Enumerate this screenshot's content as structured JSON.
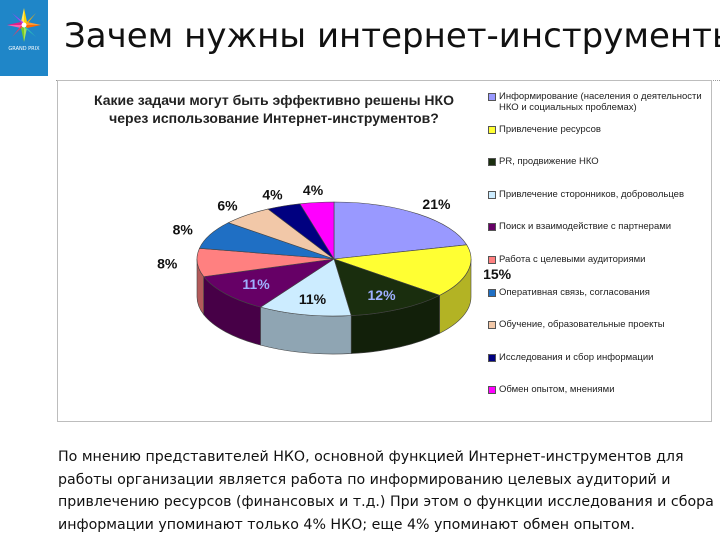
{
  "logo": {
    "text": "GRAND PRIX"
  },
  "slide": {
    "title": "Зачем нужны интернет-инструменты",
    "caption": "По мнению представителей НКО, основной функцией Интернет-инструментов для работы организации является работа по информированию целевых аудиторий и привлечению ресурсов (финансовых и т.д.) При этом о функции исследования и сбора информации упоминают только 4% НКО; еще 4% упоминают обмен опытом."
  },
  "chart_data": {
    "type": "pie",
    "title": "Какие задачи могут быть эффективно решены НКО через использование Интернет-инструментов?",
    "legend_position": "right",
    "slices": [
      {
        "label": "Информирование (населения о деятельности НКО и социальных проблемах)",
        "value": 21,
        "display": "21%",
        "color": "#9999ff"
      },
      {
        "label": "Привлечение ресурсов",
        "value": 15,
        "display": "15%",
        "color": "#ffff33"
      },
      {
        "label": "PR, продвижение НКО",
        "value": 12,
        "display": "12%",
        "color": "#1a2e0e"
      },
      {
        "label": "Привлечение сторонников, добровольцев",
        "value": 11,
        "display": "11%",
        "color": "#ccecff"
      },
      {
        "label": "Поиск и взаимодействие с партнерами",
        "value": 11,
        "display": "11%",
        "color": "#660066"
      },
      {
        "label": "Работа с целевыми аудиториями",
        "value": 8,
        "display": "8%",
        "color": "#ff8080"
      },
      {
        "label": "Оперативная связь, согласования",
        "value": 8,
        "display": "8%",
        "color": "#1f6fc4"
      },
      {
        "label": "Обучение, образовательные проекты",
        "value": 6,
        "display": "6%",
        "color": "#f2c8a8"
      },
      {
        "label": "Исследования и сбор информации",
        "value": 4,
        "display": "4%",
        "color": "#000080"
      },
      {
        "label": "Обмен опытом, мнениями",
        "value": 4,
        "display": "4%",
        "color": "#ff00ff"
      }
    ]
  }
}
